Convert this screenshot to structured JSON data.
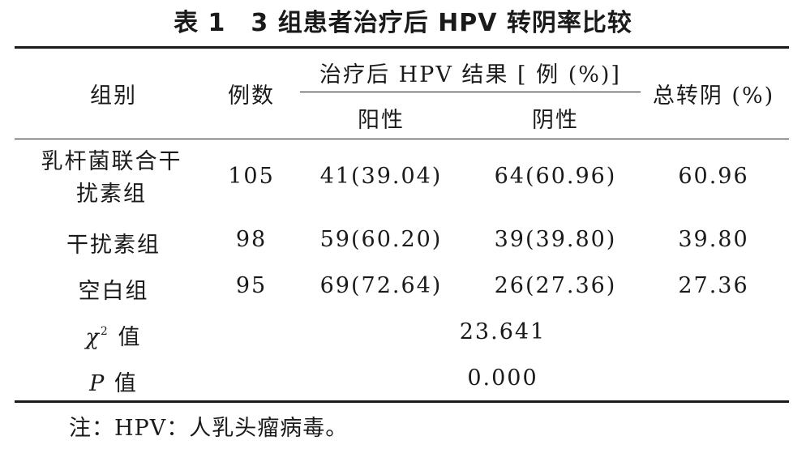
{
  "table": {
    "title": "表 1　3 组患者治疗后 HPV 转阴率比较",
    "headers": {
      "group": "组别",
      "count": "例数",
      "result_group": "治疗后 HPV 结果 [ 例 (%)]",
      "positive": "阳性",
      "negative": "阴性",
      "total_negative": "总转阴 (%)"
    },
    "rows": [
      {
        "group": "乳杆菌联合干扰素组",
        "count": "105",
        "positive": "41(39.04)",
        "negative": "64(60.96)",
        "total": "60.96"
      },
      {
        "group": "干扰素组",
        "count": "98",
        "positive": "59(60.20)",
        "negative": "39(39.80)",
        "total": "39.80"
      },
      {
        "group": "空白组",
        "count": "95",
        "positive": "69(72.64)",
        "negative": "26(27.36)",
        "total": "27.36"
      }
    ],
    "stats": {
      "chi_symbol": "χ",
      "chi_sup": "2",
      "chi_suffix": "值",
      "chi_value": "23.641",
      "p_symbol": "P",
      "p_suffix": "值",
      "p_value": "0.000"
    },
    "note": "注：HPV：人乳头瘤病毒。"
  }
}
